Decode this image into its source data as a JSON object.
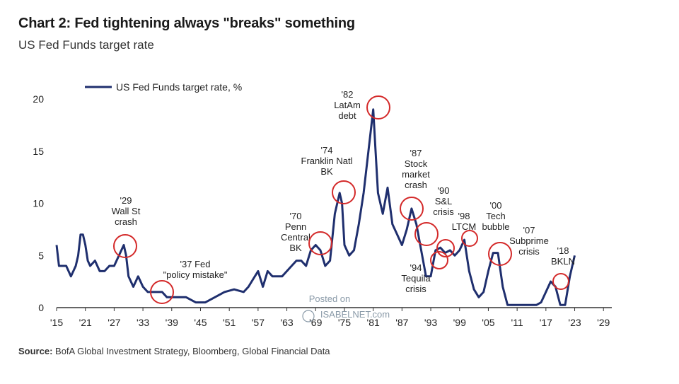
{
  "header": {
    "title": "Chart 2: Fed tightening always \"breaks\" something",
    "subtitle": "US Fed Funds target rate"
  },
  "source": {
    "label": "Source:",
    "text": " BofA Global Investment Strategy, Bloomberg, Global Financial Data"
  },
  "watermark": {
    "line1": "Posted on",
    "line2": "ISABELNET.com"
  },
  "colors": {
    "line": "#1f2f6e",
    "circle": "#d42a2a",
    "axis": "#333333"
  },
  "chart_data": {
    "type": "line",
    "title": "Chart 2: Fed tightening always \"breaks\" something",
    "subtitle": "US Fed Funds target rate",
    "xlabel": "",
    "ylabel": "",
    "xlim": [
      1915,
      2030
    ],
    "ylim": [
      0,
      20
    ],
    "x_ticks": [
      "'15",
      "'21",
      "'27",
      "'33",
      "'39",
      "'45",
      "'51",
      "'57",
      "'63",
      "'69",
      "'75",
      "'81",
      "'87",
      "'93",
      "'99",
      "'05",
      "'11",
      "'17",
      "'23",
      "'29"
    ],
    "x_tick_years": [
      1915,
      1921,
      1927,
      1933,
      1939,
      1945,
      1951,
      1957,
      1963,
      1969,
      1975,
      1981,
      1987,
      1993,
      1999,
      2005,
      2011,
      2017,
      2023,
      2029
    ],
    "y_ticks": [
      0,
      5,
      10,
      15,
      20
    ],
    "legend": {
      "position": "top-left",
      "entries": [
        "US Fed Funds target rate, %"
      ]
    },
    "grid": false,
    "series": [
      {
        "name": "US Fed Funds target rate, %",
        "x": [
          1915,
          1915.5,
          1916,
          1917,
          1918,
          1919,
          1919.5,
          1920,
          1920.5,
          1921,
          1921.5,
          1922,
          1923,
          1924,
          1925,
          1926,
          1927,
          1928,
          1928.5,
          1929,
          1929.5,
          1930,
          1931,
          1932,
          1933,
          1934,
          1935,
          1936,
          1937,
          1938,
          1939,
          1940,
          1942,
          1944,
          1946,
          1948,
          1950,
          1952,
          1954,
          1955,
          1956,
          1957,
          1958,
          1959,
          1960,
          1961,
          1962,
          1963,
          1964,
          1965,
          1966,
          1967,
          1968,
          1969,
          1970,
          1971,
          1972,
          1973,
          1974,
          1974.5,
          1975,
          1976,
          1977,
          1978,
          1979,
          1980,
          1980.5,
          1981,
          1981.5,
          1982,
          1983,
          1984,
          1985,
          1986,
          1987,
          1988,
          1989,
          1990,
          1991,
          1992,
          1993,
          1994,
          1995,
          1996,
          1997,
          1998,
          1999,
          2000,
          2001,
          2002,
          2003,
          2004,
          2005,
          2006,
          2007,
          2008,
          2009,
          2012,
          2015,
          2016,
          2017,
          2018,
          2019,
          2020,
          2021,
          2022,
          2023
        ],
        "y": [
          6,
          4,
          4,
          4,
          3,
          4,
          5,
          7,
          7,
          6,
          4.5,
          4,
          4.5,
          3.5,
          3.5,
          4,
          4,
          5,
          5.5,
          6,
          5,
          3,
          2,
          3,
          2,
          1.5,
          1.5,
          1.5,
          1.5,
          1,
          1,
          1,
          1,
          0.5,
          0.5,
          1,
          1.5,
          1.75,
          1.5,
          2,
          2.75,
          3.5,
          2,
          3.5,
          3,
          3,
          3,
          3.5,
          4,
          4.5,
          4.5,
          4,
          5.5,
          6,
          5.5,
          4,
          4.5,
          9,
          11,
          10,
          6,
          5,
          5.5,
          8,
          11,
          15,
          17,
          19,
          15,
          11,
          9,
          11.5,
          8,
          7,
          6,
          7.5,
          9.5,
          8,
          5.5,
          3,
          3,
          5.5,
          5.75,
          5.25,
          5.5,
          5,
          5.5,
          6.5,
          3.5,
          1.75,
          1,
          1.5,
          3.5,
          5.25,
          5.25,
          2,
          0.25,
          0.25,
          0.25,
          0.5,
          1.5,
          2.5,
          2,
          0.25,
          0.25,
          3,
          5
        ]
      }
    ],
    "annotations": [
      {
        "text": [
          "'29",
          "Wall St",
          "crash"
        ],
        "x": 1929,
        "y": 6
      },
      {
        "text": [
          "'37 Fed",
          "\"policy mistake\""
        ],
        "x": 1937.5,
        "y": 1.3
      },
      {
        "text": [
          "'70",
          "Penn",
          "Central",
          "BK"
        ],
        "x": 1970,
        "y": 6
      },
      {
        "text": [
          "'74",
          "Franklin Natl",
          "BK"
        ],
        "x": 1974.5,
        "y": 11
      },
      {
        "text": [
          "'82",
          "LatAm",
          "debt"
        ],
        "x": 1981.5,
        "y": 19.2
      },
      {
        "text": [
          "'87",
          "Stock",
          "market",
          "crash"
        ],
        "x": 1988,
        "y": 9.7
      },
      {
        "text": [
          "'90",
          "S&L",
          "crisis"
        ],
        "x": 1994.5,
        "y": 5.5
      },
      {
        "text": [
          "'94",
          "Tequila",
          "crisis"
        ],
        "x": 1992,
        "y": 4.4
      },
      {
        "text": [
          "'98",
          "LTCM"
        ],
        "x": 1999.5,
        "y": 6.6
      },
      {
        "text": [
          "'00",
          "Tech",
          "bubble"
        ],
        "x": 2006,
        "y": 5.3
      },
      {
        "text": [
          "'07",
          "Subprime",
          "crisis"
        ],
        "x": 2006,
        "y": 5.3
      },
      {
        "text": [
          "'18",
          "BKLN"
        ],
        "x": 2019,
        "y": 2.5
      }
    ]
  }
}
